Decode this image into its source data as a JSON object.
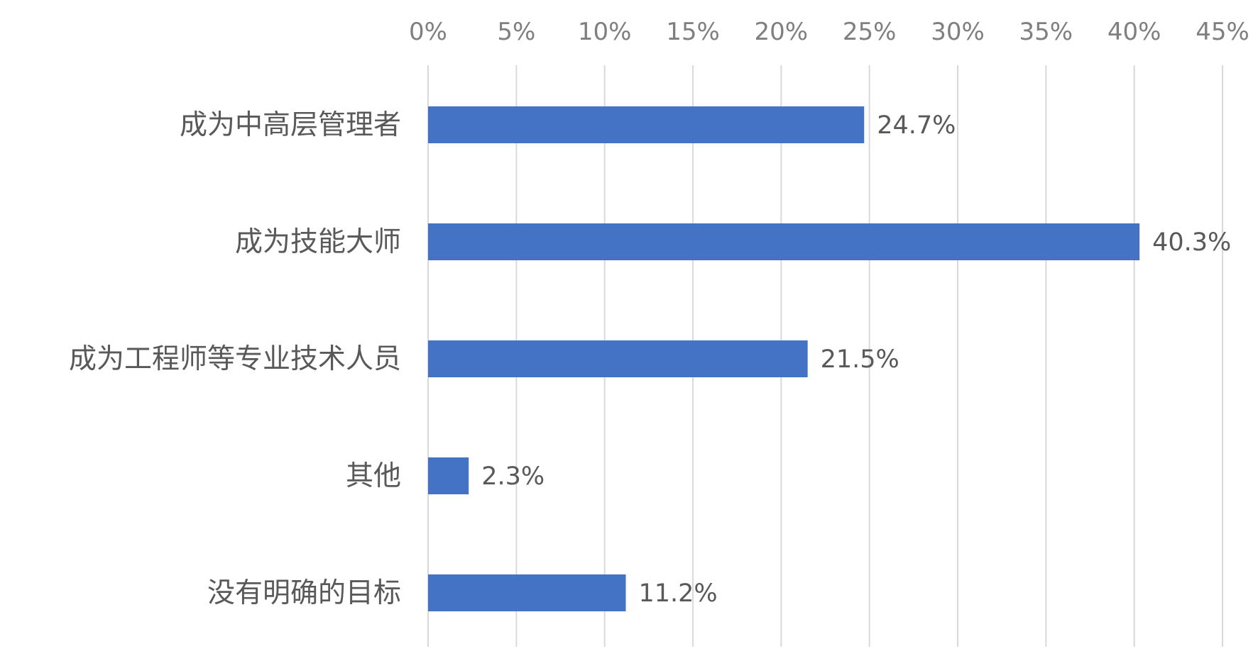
{
  "chart_data": {
    "type": "bar",
    "orientation": "horizontal",
    "categories": [
      "成为中高层管理者",
      "成为技能大师",
      "成为工程师等专业技术人员",
      "其他",
      "没有明确的目标"
    ],
    "values": [
      24.7,
      40.3,
      21.5,
      2.3,
      11.2
    ],
    "data_labels": [
      "24.7%",
      "40.3%",
      "21.5%",
      "2.3%",
      "11.2%"
    ],
    "x_ticks": [
      "0%",
      "5%",
      "10%",
      "15%",
      "20%",
      "25%",
      "30%",
      "35%",
      "40%",
      "45%"
    ],
    "xlim": [
      0,
      45
    ],
    "x_axis_position": "top",
    "grid": true,
    "legend": "none",
    "title": "",
    "xlabel": "",
    "ylabel": "",
    "colors": {
      "bar": "#4472c4",
      "grid": "#d9d9d9",
      "tick_text": "#7f7f7f",
      "label_text": "#595959"
    }
  }
}
